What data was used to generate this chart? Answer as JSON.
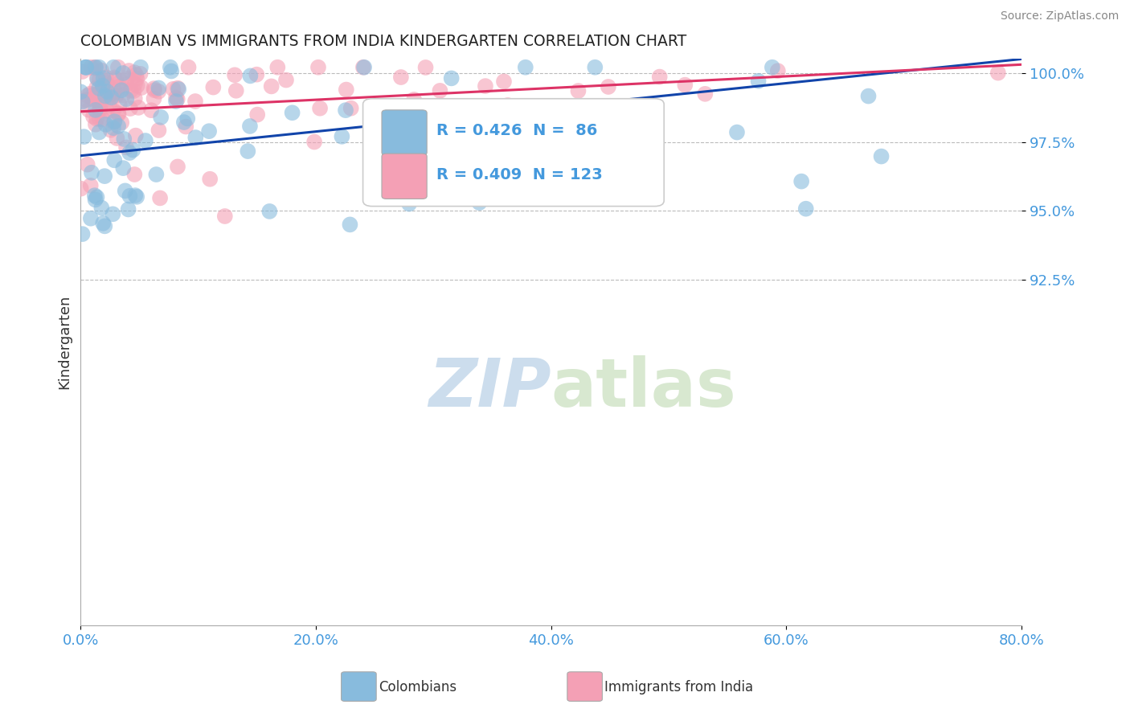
{
  "title": "COLOMBIAN VS IMMIGRANTS FROM INDIA KINDERGARTEN CORRELATION CHART",
  "source": "Source: ZipAtlas.com",
  "ylabel": "Kindergarten",
  "xlabel": "",
  "xlim": [
    0.0,
    80.0
  ],
  "ylim": [
    80.0,
    100.5
  ],
  "xticks": [
    0.0,
    20.0,
    40.0,
    60.0,
    80.0
  ],
  "yticks": [
    92.5,
    95.0,
    97.5,
    100.0
  ],
  "colombians_R": 0.426,
  "colombians_N": 86,
  "india_R": 0.409,
  "india_N": 123,
  "colombian_color": "#88bbdd",
  "india_color": "#f4a0b5",
  "trend_blue": "#1144aa",
  "trend_pink": "#dd3366",
  "watermark_color": "#ccdded",
  "background_color": "#ffffff",
  "grid_color": "#bbbbbb",
  "title_color": "#222222",
  "axis_label_color": "#333333",
  "tick_label_color": "#4499dd",
  "blue_line_y0": 97.0,
  "blue_line_y1": 100.5,
  "pink_line_y0": 98.6,
  "pink_line_y1": 100.3
}
